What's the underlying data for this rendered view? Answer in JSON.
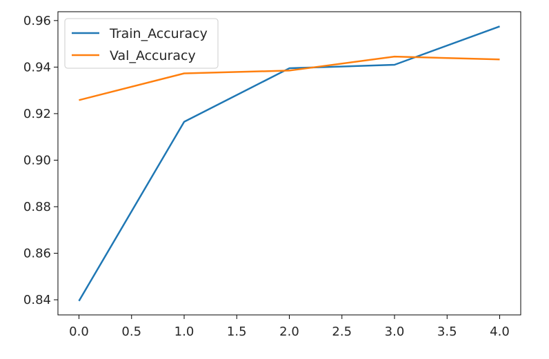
{
  "chart_data": {
    "type": "line",
    "title": "",
    "xlabel": "",
    "ylabel": "",
    "x": [
      0,
      1,
      2,
      3,
      4
    ],
    "xlim": [
      -0.2,
      4.2
    ],
    "ylim": [
      0.8335,
      0.9638
    ],
    "xticks": [
      0.0,
      0.5,
      1.0,
      1.5,
      2.0,
      2.5,
      3.0,
      3.5,
      4.0
    ],
    "xtick_labels": [
      "0.0",
      "0.5",
      "1.0",
      "1.5",
      "2.0",
      "2.5",
      "3.0",
      "3.5",
      "4.0"
    ],
    "yticks": [
      0.84,
      0.86,
      0.88,
      0.9,
      0.92,
      0.94,
      0.96
    ],
    "ytick_labels": [
      "0.84",
      "0.86",
      "0.88",
      "0.90",
      "0.92",
      "0.94",
      "0.96"
    ],
    "grid": false,
    "legend_position": "upper-left",
    "series": [
      {
        "name": "Train_Accuracy",
        "color": "#1f77b4",
        "values": [
          0.8395,
          0.9165,
          0.9395,
          0.941,
          0.9575
        ]
      },
      {
        "name": "Val_Accuracy",
        "color": "#ff7f0e",
        "values": [
          0.9258,
          0.9373,
          0.9385,
          0.9445,
          0.9433
        ]
      }
    ]
  }
}
